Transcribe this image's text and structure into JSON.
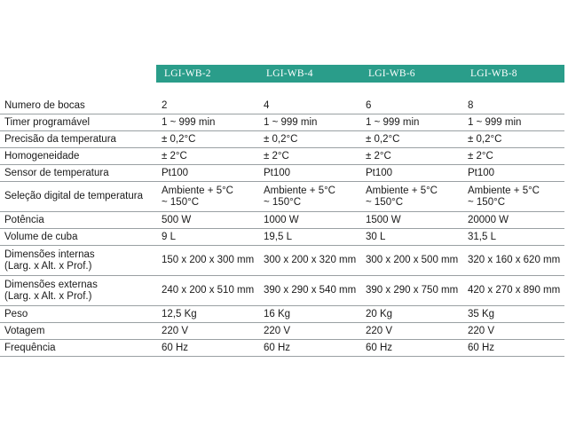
{
  "header": {
    "models": [
      "LGI-WB-2",
      "LGI-WB-4",
      "LGI-WB-6",
      "LGI-WB-8"
    ]
  },
  "rows": [
    {
      "label": "Numero de bocas",
      "values": [
        "2",
        "4",
        "6",
        "8"
      ]
    },
    {
      "label": "Timer programável",
      "values": [
        "1 ~ 999 min",
        "1 ~ 999 min",
        "1 ~ 999 min",
        "1 ~ 999 min"
      ]
    },
    {
      "label": "Precisão da temperatura",
      "values": [
        "± 0,2°C",
        "± 0,2°C",
        "± 0,2°C",
        "± 0,2°C"
      ]
    },
    {
      "label": "Homogeneidade",
      "values": [
        "± 2°C",
        "± 2°C",
        "± 2°C",
        "± 2°C"
      ]
    },
    {
      "label": "Sensor de temperatura",
      "values": [
        "Pt100",
        "Pt100",
        "Pt100",
        "Pt100"
      ]
    },
    {
      "label": "Seleção digital de temperatura",
      "values_l1": [
        "Ambiente + 5°C",
        "Ambiente + 5°C",
        "Ambiente + 5°C",
        "Ambiente + 5°C"
      ],
      "values_l2": [
        "~ 150°C",
        "~ 150°C",
        "~ 150°C",
        "~ 150°C"
      ]
    },
    {
      "label": "Potência",
      "values": [
        "500 W",
        "1000 W",
        "1500 W",
        "20000 W"
      ]
    },
    {
      "label": "Volume de cuba",
      "values": [
        "9 L",
        "19,5 L",
        "30 L",
        "31,5 L"
      ]
    },
    {
      "label_l1": "Dimensões internas",
      "label_l2": "(Larg. x Alt. x Prof.)",
      "values": [
        "150 x 200 x 300 mm",
        "300 x 200 x 320 mm",
        "300 x 200 x 500 mm",
        "320 x 160 x 620 mm"
      ]
    },
    {
      "label_l1": "Dimensões externas",
      "label_l2": "(Larg. x Alt. x Prof.)",
      "values": [
        "240 x 200 x 510 mm",
        "390 x 290 x 540 mm",
        "390 x 290 x 750 mm",
        "420 x 270 x 890 mm"
      ]
    },
    {
      "label": "Peso",
      "values": [
        "12,5 Kg",
        "16 Kg",
        "20 Kg",
        "35 Kg"
      ]
    },
    {
      "label": "Votagem",
      "values": [
        "220 V",
        "220 V",
        "220 V",
        "220 V"
      ]
    },
    {
      "label": "Frequência",
      "values": [
        "60 Hz",
        "60 Hz",
        "60 Hz",
        "60 Hz"
      ]
    }
  ],
  "colors": {
    "header_band": "#2a9d8a",
    "rule": "#9aa0a3"
  }
}
